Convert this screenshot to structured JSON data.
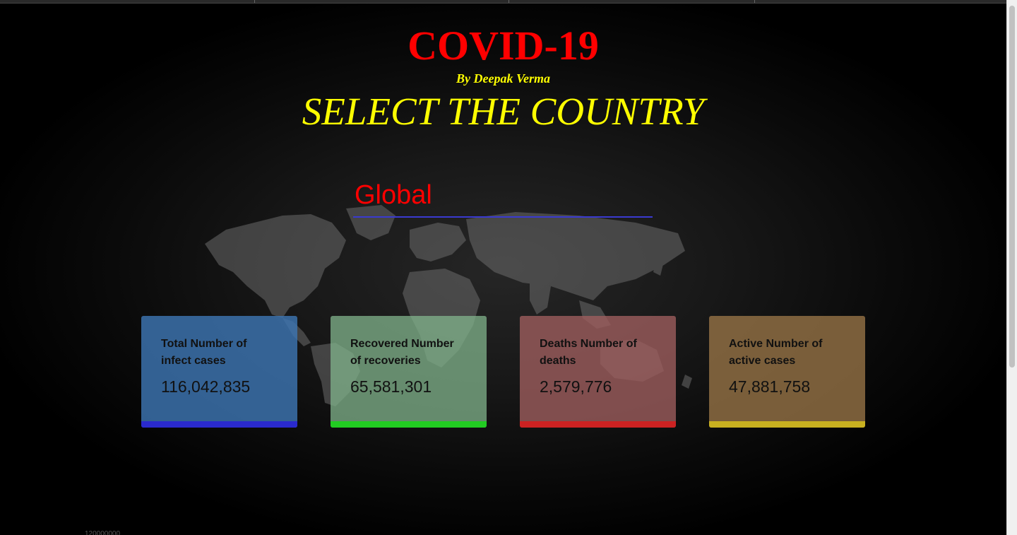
{
  "header": {
    "title": "COVID-19",
    "byline": "By Deepak Verma",
    "subtitle": "SELECT THE COUNTRY"
  },
  "country_select": {
    "value": "Global"
  },
  "cards": [
    {
      "label": "Total Number of infect cases",
      "value": "116,042,835",
      "color": "#3d75b2",
      "bar_color": "#2a2acd"
    },
    {
      "label": "Recovered Number of recoveries",
      "value": "65,581,301",
      "color": "#82b48c",
      "bar_color": "#22cc22"
    },
    {
      "label": "Deaths Number of deaths",
      "value": "2,579,776",
      "color": "#a05f5f",
      "bar_color": "#cc2222"
    },
    {
      "label": "Active Number of active cases",
      "value": "47,881,758",
      "color": "#967346",
      "bar_color": "#c8b020"
    }
  ],
  "chart_axis_peek": "120000000",
  "colors": {
    "title": "#ff0000",
    "subtitle": "#ffff00",
    "background": "#000000",
    "select_underline": "#3a3ad0"
  }
}
